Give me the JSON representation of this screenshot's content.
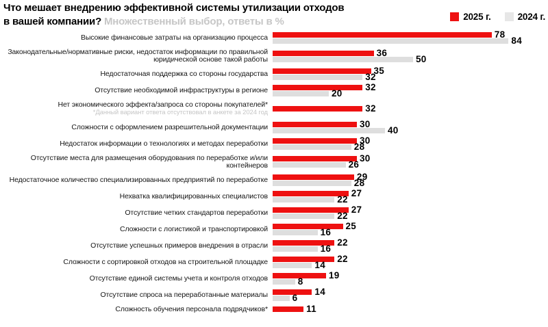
{
  "header": {
    "title_line1": "Что мешает внедрению эффективной системы утилизации отходов",
    "title_line2": "в вашей компании?",
    "subtitle": "Множественный выбор, ответы в %",
    "legend": [
      {
        "label": "2025 г.",
        "color": "#ee1111"
      },
      {
        "label": "2024 г.",
        "color": "#e7e7e7"
      }
    ]
  },
  "colors": {
    "bar_2025": "#ee1111",
    "bar_2024": "#dedede",
    "value_label": "#000000",
    "category_label": "#141414",
    "footnote_gray": "#c6c6c6",
    "subtitle_gray": "#c6c6c6",
    "background": "#ffffff"
  },
  "chart_data": {
    "type": "bar",
    "orientation": "horizontal",
    "title": "Что мешает внедрению эффективной системы утилизации отходов в вашей компании?",
    "subtitle": "Множественный выбор, ответы в %",
    "legend_position": "top-right",
    "grid": false,
    "xlim": [
      0,
      90
    ],
    "units": "%",
    "categories": [
      "Высокие финансовые затраты на организацию процесса",
      "Законодательные/нормативные риски, недостаток информации по правильной юридической основе такой работы",
      "Недостаточная поддержка со стороны государства",
      "Отсутствие необходимой инфраструктуры в регионе",
      "Нет экономического эффекта/запроса со стороны покупателей*",
      "Сложности с оформлением разрешительной документации",
      "Недостаток информации о технологиях и методах переработки",
      "Отсутствие места для размещения оборудования по переработке и/или контейнеров",
      "Недостаточное количество специализированных предприятий по переработке",
      "Нехватка квалифицированных специалистов",
      "Отсутствие четких стандартов переработки",
      "Сложности с логистикой и транспортировкой",
      "Отсутствие успешных примеров внедрения в отрасли",
      "Сложности с сортировкой отходов на строительной площадке",
      "Отсутствие единой системы учета и контроля отходов",
      "Отсутствие спроса на переработанные материалы",
      "Сложность обучения персонала подрядчиков*"
    ],
    "series": [
      {
        "name": "2025 г.",
        "color": "#ee1111",
        "values": [
          78,
          36,
          35,
          32,
          32,
          30,
          30,
          30,
          29,
          27,
          27,
          25,
          22,
          22,
          19,
          14,
          11
        ]
      },
      {
        "name": "2024 г.",
        "color": "#dedede",
        "values": [
          84,
          50,
          32,
          20,
          null,
          40,
          28,
          26,
          28,
          22,
          22,
          16,
          16,
          14,
          8,
          6,
          null
        ]
      }
    ],
    "footnotes": {
      "4": "*Данный вариант ответа отсутствовал в анкете за 2024 год"
    }
  }
}
